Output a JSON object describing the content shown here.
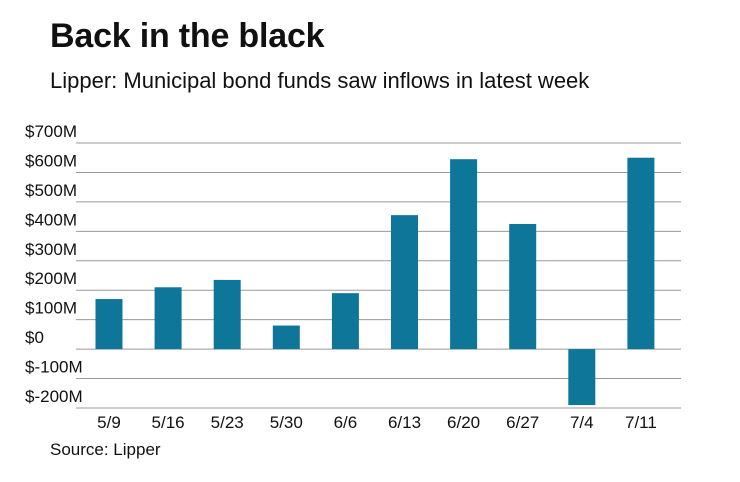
{
  "chart_data": {
    "type": "bar",
    "title": "Back in the black",
    "subtitle": "Lipper: Municipal bond funds saw inflows in latest week",
    "source": "Source: Lipper",
    "categories": [
      "5/9",
      "5/16",
      "5/23",
      "5/30",
      "6/6",
      "6/13",
      "6/20",
      "6/27",
      "7/4",
      "7/11"
    ],
    "values": [
      170,
      210,
      235,
      80,
      190,
      455,
      645,
      425,
      -190,
      650
    ],
    "unit": "millions of dollars",
    "ylim": [
      -200,
      700
    ],
    "yticks": [
      700,
      600,
      500,
      400,
      300,
      200,
      100,
      0,
      -100,
      -200
    ],
    "ytick_labels": [
      "$700M",
      "$600M",
      "$500M",
      "$400M",
      "$300M",
      "$200M",
      "$100M",
      "$0",
      "$-100M",
      "$-200M"
    ],
    "grid": true,
    "bar_color": "#0e7799",
    "grid_color": "#9a9a9a"
  }
}
